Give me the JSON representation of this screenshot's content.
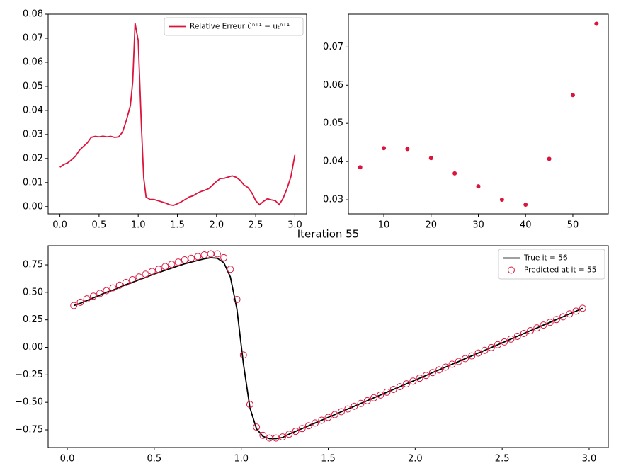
{
  "chart_data": [
    {
      "type": "line",
      "x": [
        0,
        0.05,
        0.1,
        0.15,
        0.2,
        0.25,
        0.3,
        0.35,
        0.4,
        0.45,
        0.5,
        0.55,
        0.6,
        0.65,
        0.7,
        0.75,
        0.8,
        0.85,
        0.9,
        0.93,
        0.96,
        1.0,
        1.04,
        1.07,
        1.1,
        1.15,
        1.2,
        1.25,
        1.3,
        1.35,
        1.4,
        1.45,
        1.5,
        1.55,
        1.6,
        1.65,
        1.7,
        1.75,
        1.8,
        1.85,
        1.9,
        1.95,
        2.0,
        2.05,
        2.1,
        2.15,
        2.2,
        2.25,
        2.3,
        2.35,
        2.4,
        2.45,
        2.5,
        2.55,
        2.6,
        2.65,
        2.7,
        2.75,
        2.8,
        2.85,
        2.9,
        2.95,
        3.0
      ],
      "series": [
        {
          "name": "Relative Erreur ûⁿ⁺¹ − uₜⁿ⁺¹",
          "color": "#dc143c",
          "mode": "line",
          "values": [
            0.0164,
            0.0175,
            0.0182,
            0.0195,
            0.021,
            0.0235,
            0.025,
            0.0265,
            0.0288,
            0.0292,
            0.029,
            0.0293,
            0.029,
            0.0292,
            0.0288,
            0.029,
            0.031,
            0.036,
            0.042,
            0.052,
            0.0762,
            0.069,
            0.034,
            0.012,
            0.004,
            0.003,
            0.003,
            0.0025,
            0.002,
            0.0015,
            0.0008,
            0.0005,
            0.0012,
            0.002,
            0.003,
            0.004,
            0.0045,
            0.0055,
            0.0063,
            0.0068,
            0.0075,
            0.009,
            0.0105,
            0.0117,
            0.0118,
            0.0123,
            0.0128,
            0.0122,
            0.011,
            0.009,
            0.008,
            0.0058,
            0.0025,
            0.0008,
            0.0022,
            0.0033,
            0.0028,
            0.0025,
            0.0008,
            0.0035,
            0.0075,
            0.0125,
            0.0215
          ]
        }
      ],
      "legend": "upper right",
      "xlim": [
        -0.15,
        3.15
      ],
      "ylim": [
        -0.003,
        0.08
      ],
      "xticks": [
        {
          "value": 0,
          "label": "0.0"
        },
        {
          "value": 0.5,
          "label": "0.5"
        },
        {
          "value": 1,
          "label": "1.0"
        },
        {
          "value": 1.5,
          "label": "1.5"
        },
        {
          "value": 2,
          "label": "2.0"
        },
        {
          "value": 2.5,
          "label": "2.5"
        },
        {
          "value": 3,
          "label": "3.0"
        }
      ],
      "yticks": [
        {
          "value": 0,
          "label": "0.00"
        },
        {
          "value": 0.01,
          "label": "0.01"
        },
        {
          "value": 0.02,
          "label": "0.02"
        },
        {
          "value": 0.03,
          "label": "0.03"
        },
        {
          "value": 0.04,
          "label": "0.04"
        },
        {
          "value": 0.05,
          "label": "0.05"
        },
        {
          "value": 0.06,
          "label": "0.06"
        },
        {
          "value": 0.07,
          "label": "0.07"
        },
        {
          "value": 0.08,
          "label": "0.08"
        }
      ]
    },
    {
      "type": "scatter",
      "x": [
        5,
        10,
        15,
        20,
        25,
        30,
        35,
        40,
        45,
        50,
        55
      ],
      "values": [
        0.0385,
        0.0435,
        0.0433,
        0.0409,
        0.0369,
        0.0335,
        0.03,
        0.0287,
        0.0407,
        0.0574,
        0.0761
      ],
      "color": "#dc143c",
      "xlim": [
        2.5,
        57.5
      ],
      "ylim": [
        0.0263,
        0.0786
      ],
      "xticks": [
        10,
        20,
        30,
        40,
        50
      ],
      "yticks": [
        0.03,
        0.04,
        0.05,
        0.06,
        0.07
      ]
    },
    {
      "type": "line",
      "title": "Iteration 55",
      "x": [
        0.0375,
        0.075,
        0.1125,
        0.15,
        0.1875,
        0.225,
        0.2625,
        0.3,
        0.3375,
        0.375,
        0.4125,
        0.45,
        0.4875,
        0.525,
        0.5625,
        0.6,
        0.6375,
        0.675,
        0.7125,
        0.75,
        0.7875,
        0.825,
        0.8625,
        0.9,
        0.9375,
        0.975,
        1.0125,
        1.05,
        1.0875,
        1.125,
        1.1625,
        1.2,
        1.2375,
        1.275,
        1.3125,
        1.35,
        1.3875,
        1.425,
        1.4625,
        1.5,
        1.5375,
        1.575,
        1.6125,
        1.65,
        1.6875,
        1.725,
        1.7625,
        1.8,
        1.8375,
        1.875,
        1.9125,
        1.95,
        1.9875,
        2.025,
        2.0625,
        2.1,
        2.1375,
        2.175,
        2.2125,
        2.25,
        2.2875,
        2.325,
        2.3625,
        2.4,
        2.4375,
        2.475,
        2.5125,
        2.55,
        2.5875,
        2.625,
        2.6625,
        2.7,
        2.7375,
        2.775,
        2.8125,
        2.85,
        2.8875,
        2.925,
        2.9625
      ],
      "series": [
        {
          "name": "True it = 56",
          "color": "#000000",
          "mode": "line",
          "values": [
            0.38,
            0.4,
            0.425,
            0.45,
            0.475,
            0.5,
            0.52,
            0.545,
            0.57,
            0.59,
            0.615,
            0.635,
            0.66,
            0.68,
            0.7,
            0.72,
            0.74,
            0.76,
            0.775,
            0.79,
            0.805,
            0.815,
            0.81,
            0.77,
            0.64,
            0.35,
            -0.15,
            -0.55,
            -0.74,
            -0.81,
            -0.83,
            -0.83,
            -0.82,
            -0.79,
            -0.764,
            -0.739,
            -0.713,
            -0.688,
            -0.663,
            -0.637,
            -0.612,
            -0.586,
            -0.561,
            -0.536,
            -0.51,
            -0.485,
            -0.459,
            -0.434,
            -0.408,
            -0.383,
            -0.358,
            -0.332,
            -0.307,
            -0.281,
            -0.256,
            -0.23,
            -0.205,
            -0.18,
            -0.154,
            -0.129,
            -0.103,
            -0.078,
            -0.052,
            -0.027,
            -0.002,
            0.024,
            0.049,
            0.075,
            0.1,
            0.126,
            0.151,
            0.176,
            0.202,
            0.227,
            0.253,
            0.278,
            0.304,
            0.329,
            0.355
          ]
        },
        {
          "name": "Predicted at it = 55",
          "color": "#dc143c",
          "mode": "markers",
          "values": [
            0.38,
            0.41,
            0.44,
            0.465,
            0.49,
            0.515,
            0.54,
            0.565,
            0.59,
            0.615,
            0.64,
            0.665,
            0.69,
            0.71,
            0.735,
            0.755,
            0.775,
            0.795,
            0.81,
            0.825,
            0.84,
            0.85,
            0.85,
            0.815,
            0.71,
            0.435,
            -0.07,
            -0.52,
            -0.725,
            -0.8,
            -0.825,
            -0.825,
            -0.815,
            -0.79,
            -0.764,
            -0.739,
            -0.713,
            -0.688,
            -0.663,
            -0.637,
            -0.612,
            -0.586,
            -0.561,
            -0.536,
            -0.51,
            -0.485,
            -0.459,
            -0.434,
            -0.408,
            -0.383,
            -0.358,
            -0.332,
            -0.307,
            -0.281,
            -0.256,
            -0.23,
            -0.205,
            -0.18,
            -0.154,
            -0.129,
            -0.103,
            -0.078,
            -0.052,
            -0.027,
            -0.002,
            0.024,
            0.049,
            0.075,
            0.1,
            0.126,
            0.151,
            0.176,
            0.202,
            0.227,
            0.253,
            0.278,
            0.304,
            0.329,
            0.355
          ]
        }
      ],
      "legend": "upper right",
      "xlim": [
        -0.11,
        3.11
      ],
      "ylim": [
        -0.911,
        0.924
      ],
      "xticks": [
        {
          "value": 0,
          "label": "0.0"
        },
        {
          "value": 0.5,
          "label": "0.5"
        },
        {
          "value": 1,
          "label": "1.0"
        },
        {
          "value": 1.5,
          "label": "1.5"
        },
        {
          "value": 2,
          "label": "2.0"
        },
        {
          "value": 2.5,
          "label": "2.5"
        },
        {
          "value": 3,
          "label": "3.0"
        }
      ],
      "yticks": [
        {
          "value": -0.75,
          "label": "−0.75"
        },
        {
          "value": -0.5,
          "label": "−0.50"
        },
        {
          "value": -0.25,
          "label": "−0.25"
        },
        {
          "value": 0,
          "label": "0.00"
        },
        {
          "value": 0.25,
          "label": "0.25"
        },
        {
          "value": 0.5,
          "label": "0.50"
        },
        {
          "value": 0.75,
          "label": "0.75"
        }
      ]
    }
  ]
}
